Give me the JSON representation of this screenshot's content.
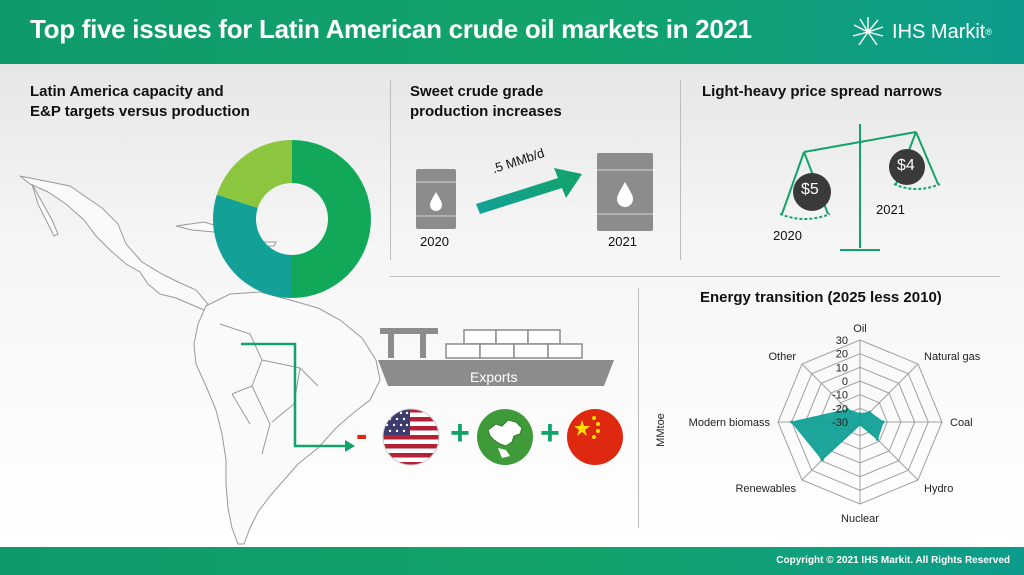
{
  "header": {
    "title": "Top five issues for Latin American crude oil markets in 2021"
  },
  "logo": {
    "text": "IHS Markit",
    "reg": "®"
  },
  "sections": {
    "capacity": {
      "title_line1": "Latin America capacity and",
      "title_line2": "E&P targets versus production"
    },
    "sweet": {
      "title_line1": "Sweet crude grade",
      "title_line2": "production increases",
      "year_left": "2020",
      "year_right": "2021",
      "arrow_label": ".5 MMb/d"
    },
    "spread": {
      "title": "Light-heavy price spread narrows",
      "left_price": "$5",
      "right_price": "$4",
      "left_year": "2020",
      "right_year": "2021"
    },
    "exports": {
      "ship_label": "Exports",
      "minus": "-",
      "plus1": "+",
      "plus2": "+"
    },
    "energy": {
      "title": "Energy transition (2025 less 2010)"
    }
  },
  "donut": {
    "segments": [
      {
        "name": "dark",
        "fraction": 0.5,
        "color": "#11a85a"
      },
      {
        "name": "teal",
        "fraction": 0.3,
        "color": "#13a197"
      },
      {
        "name": "light",
        "fraction": 0.2,
        "color": "#8cc63f"
      }
    ]
  },
  "chart_data": {
    "type": "radar",
    "title": "Energy transition (2025 less 2010)",
    "axis_label": "MMtoe",
    "categories": [
      "Oil",
      "Natural gas",
      "Coal",
      "Hydro",
      "Nuclear",
      "Renewables",
      "Modern biomass",
      "Other"
    ],
    "ticks": [
      "30",
      "20",
      "10",
      "0",
      "-10",
      "-20",
      "-30"
    ],
    "range": [
      -30,
      30
    ],
    "series": [
      {
        "values": [
          -24,
          -20,
          -13,
          -12,
          -28,
          9,
          20,
          -17
        ],
        "color": "#13a197"
      }
    ]
  },
  "footer": {
    "copyright": "Copyright © 2021 IHS Markit. All Rights Reserved"
  },
  "colors": {
    "brand_green": "#12a36a",
    "teal": "#13a197",
    "barrel_gray": "#8c8c8c",
    "china_red": "#de2910"
  }
}
